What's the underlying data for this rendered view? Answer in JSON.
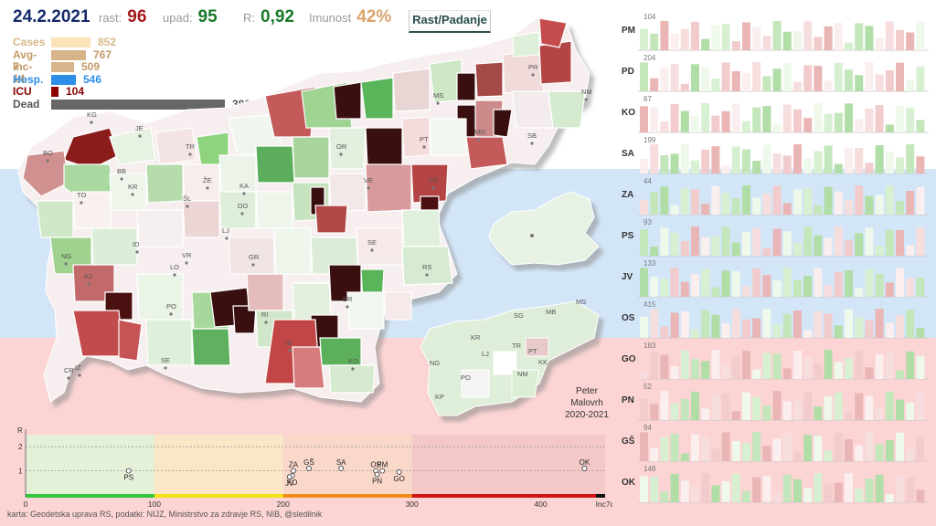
{
  "header": {
    "date": "24.2.2021",
    "rast_label": "rast:",
    "rast_value": "96",
    "upad_label": "upad:",
    "upad_value": "95",
    "r_label": "R:",
    "r_value": "0,92",
    "imunost_label": "Imunost",
    "imunost_value": "42%",
    "toggle_label": "Rast/Padanje"
  },
  "stats": [
    {
      "label": "Cases",
      "value": "852",
      "fraction": 0.224,
      "color": "#fde3b8",
      "label_color": "#d8b88a"
    },
    {
      "label": "Avg-7",
      "value": "767",
      "fraction": 0.201,
      "color": "#d8b48a",
      "label_color": "#c49a68"
    },
    {
      "label": "Inc-14",
      "value": "509",
      "fraction": 0.134,
      "color": "#d8b48a",
      "label_color": "#c49a68"
    },
    {
      "label": "Hosp.",
      "value": "546",
      "fraction": 0.143,
      "color": "#2d8ee8",
      "label_color": "#2d8ee8"
    },
    {
      "label": "ICU",
      "value": "104",
      "fraction": 0.027,
      "color": "#8b0000",
      "label_color": "#8b0000"
    },
    {
      "label": "Dead",
      "value": "3809",
      "fraction": 1.0,
      "color": "#666666",
      "label_color": "#555555"
    }
  ],
  "map_labels": [
    "KG",
    "JE",
    "BO",
    "TR",
    "BB",
    "KR",
    "ŽE",
    "TO",
    "ŠL",
    "KA",
    "DO",
    "LJ",
    "ID",
    "NG",
    "LO",
    "VR",
    "GR",
    "AJ",
    "PO",
    "SE",
    "RI",
    "SE",
    "IB",
    "KO",
    "CR",
    "IZ",
    "PR",
    "MS",
    "MG",
    "PT",
    "SB",
    "OR",
    "VE",
    "CE",
    "RS",
    "BR",
    "NM",
    "LE"
  ],
  "mini_map_labels": [
    "MS",
    "SG",
    "MB",
    "KR",
    "LJ",
    "TR",
    "PT",
    "NG",
    "PO",
    "NM",
    "KK",
    "KP"
  ],
  "signature": {
    "line1": "Peter",
    "line2": "Malovrh",
    "line3": "2020-2021"
  },
  "regions": [
    {
      "name": "PM",
      "max": "104"
    },
    {
      "name": "PD",
      "max": "204"
    },
    {
      "name": "KO",
      "max": "67"
    },
    {
      "name": "SA",
      "max": "199"
    },
    {
      "name": "ZA",
      "max": "44"
    },
    {
      "name": "PS",
      "max": "93"
    },
    {
      "name": "JV",
      "max": "133"
    },
    {
      "name": "OS",
      "max": "415"
    },
    {
      "name": "GO",
      "max": "183"
    },
    {
      "name": "PN",
      "max": "52"
    },
    {
      "name": "GŠ",
      "max": "94"
    },
    {
      "name": "OK",
      "max": "148"
    }
  ],
  "chart_data": {
    "type": "scatter",
    "xlabel": "Inc7d",
    "ylabel": "R",
    "xlim": [
      0,
      450
    ],
    "ylim": [
      0,
      2.5
    ],
    "x_ticks": [
      "0",
      "100",
      "200",
      "300",
      "400",
      "Inc7d"
    ],
    "y_ticks": [
      "1",
      "2"
    ],
    "points": [
      {
        "label": "PS",
        "x": 80,
        "y": 1.0
      },
      {
        "label": "ZA",
        "x": 208,
        "y": 1.0
      },
      {
        "label": "GŠ",
        "x": 220,
        "y": 1.1
      },
      {
        "label": "SA",
        "x": 245,
        "y": 1.1
      },
      {
        "label": "KO",
        "x": 207,
        "y": 0.8
      },
      {
        "label": "JV",
        "x": 205,
        "y": 0.75
      },
      {
        "label": "OS",
        "x": 272,
        "y": 1.0
      },
      {
        "label": "PM",
        "x": 277,
        "y": 1.0
      },
      {
        "label": "PN",
        "x": 273,
        "y": 0.85
      },
      {
        "label": "GO",
        "x": 290,
        "y": 0.95
      },
      {
        "label": "OK",
        "x": 434,
        "y": 1.1
      }
    ]
  },
  "footer": "karta: Geodetska uprava RS,  podatki: NIJZ, Ministrstvo za zdravje RS, NIB, @sledilnik"
}
